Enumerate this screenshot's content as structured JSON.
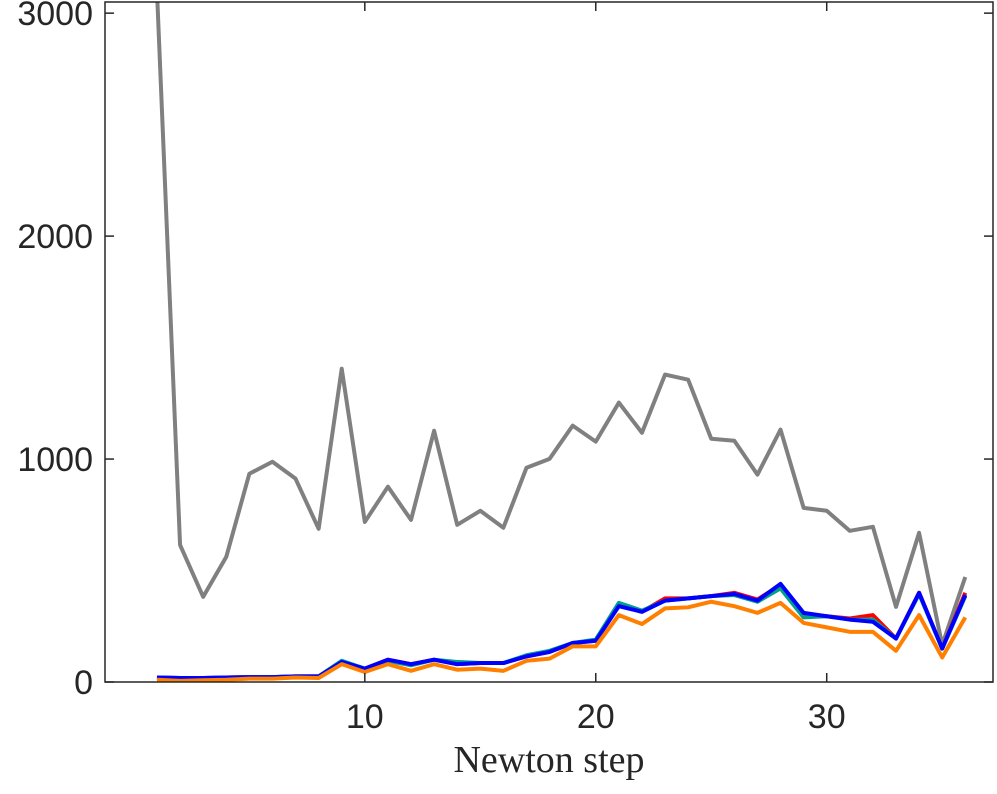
{
  "chart_data": {
    "type": "line",
    "xlabel": "Newton step",
    "x": [
      1,
      2,
      3,
      4,
      5,
      6,
      7,
      8,
      9,
      10,
      11,
      12,
      13,
      14,
      15,
      16,
      17,
      18,
      19,
      20,
      21,
      22,
      23,
      24,
      25,
      26,
      27,
      28,
      29,
      30,
      31,
      32,
      33,
      34,
      35,
      36
    ],
    "series": [
      {
        "color": "#808080",
        "values": [
          3100,
          615,
          382,
          561,
          934,
          988,
          912,
          687,
          1405,
          718,
          876,
          727,
          1127,
          705,
          768,
          692,
          961,
          1001,
          1150,
          1078,
          1253,
          1118,
          1379,
          1356,
          1091,
          1082,
          930,
          1132,
          781,
          768,
          678,
          696,
          337,
          669,
          166,
          471
        ]
      },
      {
        "color": "#ff0000",
        "values": [
          20,
          18,
          18,
          20,
          22,
          22,
          25,
          25,
          90,
          60,
          100,
          80,
          100,
          80,
          85,
          85,
          115,
          135,
          175,
          185,
          345,
          315,
          375,
          375,
          385,
          400,
          370,
          435,
          305,
          295,
          285,
          300,
          195,
          400,
          150,
          400
        ]
      },
      {
        "color": "#00a08c",
        "values": [
          20,
          18,
          18,
          20,
          22,
          22,
          25,
          25,
          95,
          60,
          95,
          75,
          100,
          90,
          85,
          85,
          120,
          140,
          175,
          190,
          355,
          320,
          365,
          375,
          385,
          390,
          360,
          420,
          290,
          295,
          280,
          280,
          195,
          395,
          150,
          385
        ]
      },
      {
        "color": "#0000ff",
        "values": [
          20,
          18,
          18,
          20,
          22,
          22,
          25,
          25,
          90,
          60,
          100,
          80,
          100,
          80,
          85,
          85,
          115,
          135,
          175,
          185,
          340,
          315,
          365,
          375,
          385,
          395,
          365,
          440,
          310,
          295,
          280,
          270,
          195,
          400,
          150,
          390
        ]
      },
      {
        "color": "#ff8000",
        "values": [
          10,
          5,
          8,
          10,
          15,
          15,
          20,
          18,
          80,
          45,
          80,
          50,
          80,
          55,
          60,
          50,
          95,
          105,
          160,
          160,
          300,
          260,
          330,
          335,
          360,
          340,
          310,
          355,
          265,
          245,
          225,
          225,
          140,
          300,
          110,
          290
        ]
      }
    ],
    "xlim": [
      -1.25,
      37.2
    ],
    "ylim": [
      0,
      3050
    ],
    "xticks": [
      10,
      20,
      30
    ],
    "yticks": [
      0,
      1000,
      2000,
      3000
    ]
  }
}
